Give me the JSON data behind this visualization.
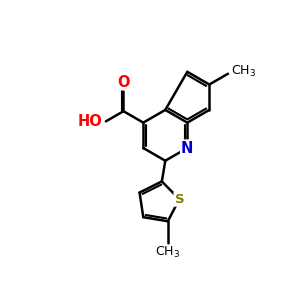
{
  "bg_color": "#ffffff",
  "bond_color": "#000000",
  "bond_width": 1.8,
  "N_color": "#0000cc",
  "O_color": "#ff0000",
  "S_color": "#808000",
  "text_color": "#000000",
  "figsize": [
    3.0,
    3.0
  ],
  "dpi": 100,
  "xlim": [
    0,
    10
  ],
  "ylim": [
    0,
    10
  ],
  "bl": 1.1
}
